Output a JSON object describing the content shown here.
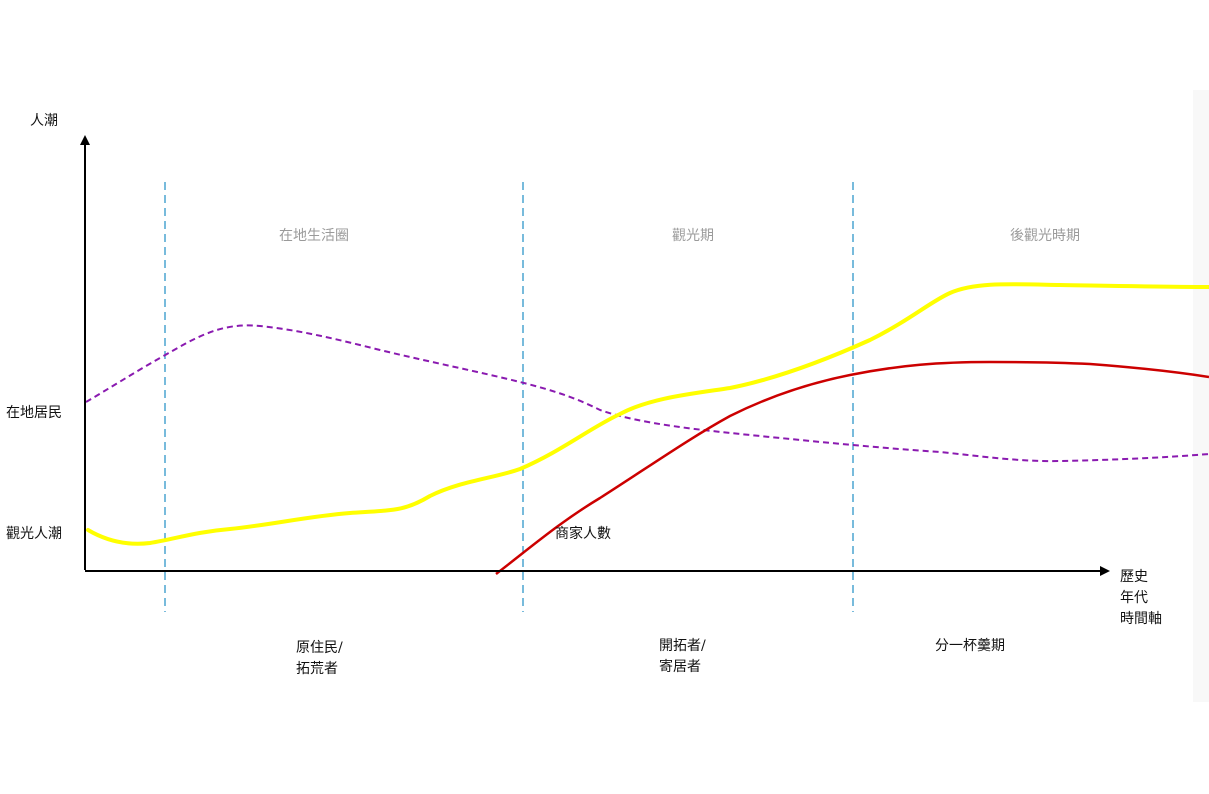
{
  "y_axis": {
    "label": "人潮"
  },
  "x_axis": {
    "label_lines": [
      "歷史",
      "年代",
      "時間軸"
    ]
  },
  "phases": [
    "在地生活圈",
    "觀光期",
    "後觀光時期"
  ],
  "eras": [
    {
      "lines": [
        "原住民/",
        "拓荒者"
      ]
    },
    {
      "lines": [
        "開拓者/",
        "寄居者"
      ]
    },
    {
      "lines": [
        "分一杯羹期"
      ]
    }
  ],
  "curve_labels": {
    "residents": "在地居民",
    "tourists": "觀光人潮",
    "merchants": "商家人數"
  },
  "colors": {
    "axis": "#000000",
    "divider": "#1f8ec4",
    "residents": "#8a1ab0",
    "tourists": "#ffff00",
    "merchants": "#cc0000",
    "phase_text": "#9a9a9a"
  }
}
